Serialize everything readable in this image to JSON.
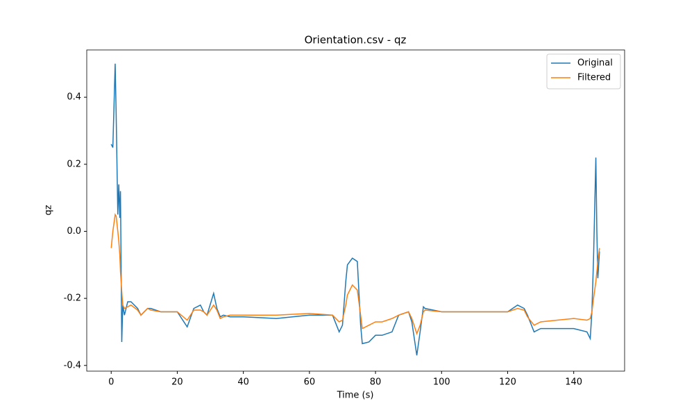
{
  "chart_data": {
    "type": "line",
    "title": "Orientation.csv - qz",
    "x_label": "Time (s)",
    "y_label": "qz",
    "x": [
      0,
      0.5,
      1.2,
      1.5,
      2,
      2.3,
      2.6,
      2.8,
      3.2,
      3.5,
      4,
      5,
      6,
      8,
      9,
      10,
      11,
      12,
      15,
      20,
      23,
      25,
      27,
      28,
      29,
      31,
      32,
      33,
      34,
      36,
      40,
      50,
      60,
      67,
      69,
      70,
      71,
      71.5,
      73,
      74.5,
      75.5,
      76,
      78,
      80,
      82,
      85,
      87,
      90,
      91,
      92.5,
      93.5,
      94.5,
      95,
      100,
      110,
      120,
      123,
      125,
      126,
      128,
      130,
      135,
      140,
      144,
      145,
      145.5,
      146,
      146.7,
      147,
      147.3,
      147.8
    ],
    "series": [
      {
        "name": "Original",
        "color": "#1f77b4",
        "values": [
          0.26,
          0.25,
          0.5,
          0.35,
          0.05,
          0.14,
          0.04,
          0.12,
          -0.33,
          -0.22,
          -0.25,
          -0.21,
          -0.21,
          -0.23,
          -0.25,
          -0.24,
          -0.23,
          -0.23,
          -0.24,
          -0.24,
          -0.285,
          -0.23,
          -0.22,
          -0.24,
          -0.25,
          -0.185,
          -0.23,
          -0.255,
          -0.25,
          -0.255,
          -0.255,
          -0.26,
          -0.25,
          -0.25,
          -0.3,
          -0.28,
          -0.15,
          -0.1,
          -0.08,
          -0.09,
          -0.28,
          -0.335,
          -0.33,
          -0.31,
          -0.31,
          -0.3,
          -0.25,
          -0.24,
          -0.27,
          -0.37,
          -0.3,
          -0.225,
          -0.23,
          -0.24,
          -0.24,
          -0.24,
          -0.22,
          -0.23,
          -0.25,
          -0.3,
          -0.29,
          -0.29,
          -0.29,
          -0.3,
          -0.32,
          -0.24,
          -0.08,
          0.22,
          0.0,
          -0.14,
          -0.06
        ]
      },
      {
        "name": "Filtered",
        "color": "#ff7f0e",
        "values": [
          -0.05,
          0.0,
          0.05,
          0.045,
          0.0,
          -0.03,
          -0.07,
          -0.12,
          -0.18,
          -0.22,
          -0.23,
          -0.225,
          -0.22,
          -0.235,
          -0.25,
          -0.24,
          -0.23,
          -0.235,
          -0.24,
          -0.24,
          -0.265,
          -0.235,
          -0.235,
          -0.24,
          -0.25,
          -0.22,
          -0.235,
          -0.26,
          -0.255,
          -0.25,
          -0.25,
          -0.25,
          -0.245,
          -0.25,
          -0.27,
          -0.265,
          -0.22,
          -0.19,
          -0.16,
          -0.175,
          -0.25,
          -0.29,
          -0.28,
          -0.27,
          -0.27,
          -0.26,
          -0.25,
          -0.24,
          -0.26,
          -0.305,
          -0.28,
          -0.24,
          -0.235,
          -0.24,
          -0.24,
          -0.24,
          -0.23,
          -0.235,
          -0.255,
          -0.28,
          -0.27,
          -0.265,
          -0.26,
          -0.265,
          -0.26,
          -0.24,
          -0.2,
          -0.15,
          -0.12,
          -0.09,
          -0.05
        ]
      }
    ],
    "xlim": [
      -7.4,
      155.4
    ],
    "ylim": [
      -0.417,
      0.541
    ],
    "xticks": [
      0,
      20,
      40,
      60,
      80,
      100,
      120,
      140
    ],
    "yticks": [
      -0.4,
      -0.2,
      {
        "value": 0,
        "label": "0.0"
      },
      0.2,
      0.4
    ],
    "legend": "upper right"
  }
}
